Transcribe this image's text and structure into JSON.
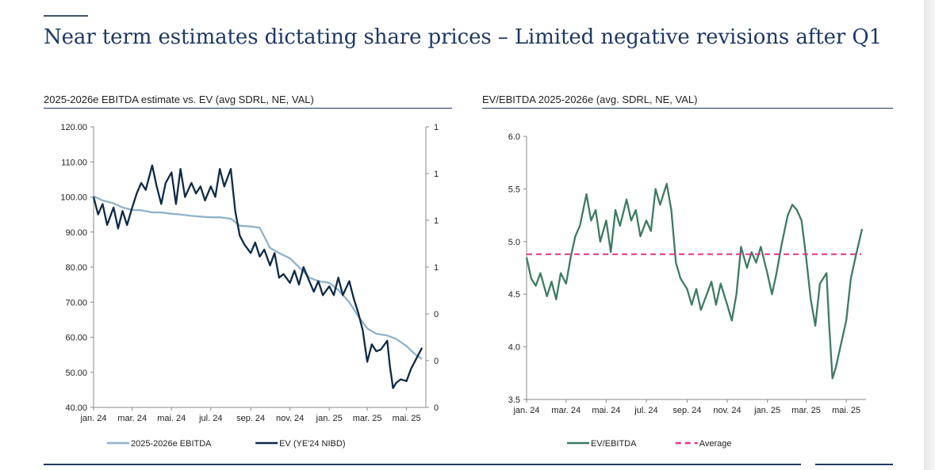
{
  "slide": {
    "title": "Near term estimates dictating share prices – Limited negative revisions after Q1"
  },
  "chart_data": [
    {
      "type": "line",
      "title": "2025-2026e EBITDA estimate vs. EV (avg SDRL, NE, VAL)",
      "x_tick_labels": [
        "jan. 24",
        "mar. 24",
        "mai. 24",
        "jul. 24",
        "sep. 24",
        "nov. 24",
        "jan. 25",
        "mar. 25",
        "mai. 25"
      ],
      "y_tick_labels": [
        "40.00",
        "50.00",
        "60.00",
        "70.00",
        "80.00",
        "90.00",
        "100.00",
        "110.00",
        "120.00"
      ],
      "y2_tick_labels": [
        "0",
        "0",
        "0",
        "1",
        "1",
        "1",
        "1"
      ],
      "ylim": [
        40,
        120
      ],
      "grid": false,
      "legend_position": "bottom",
      "series": [
        {
          "name": "2025-2026e EBITDA",
          "color": "#8fb2c9",
          "axis": "left",
          "points": [
            [
              "2024-01-01",
              100.2
            ],
            [
              "2024-01-15",
              99.0
            ],
            [
              "2024-02-01",
              98.2
            ],
            [
              "2024-02-15",
              97.0
            ],
            [
              "2024-03-01",
              96.3
            ],
            [
              "2024-03-15",
              96.2
            ],
            [
              "2024-04-01",
              95.6
            ],
            [
              "2024-04-15",
              95.6
            ],
            [
              "2024-05-01",
              95.2
            ],
            [
              "2024-05-15",
              95.0
            ],
            [
              "2024-06-01",
              94.6
            ],
            [
              "2024-06-15",
              94.4
            ],
            [
              "2024-07-01",
              94.2
            ],
            [
              "2024-07-15",
              94.2
            ],
            [
              "2024-08-01",
              93.8
            ],
            [
              "2024-08-15",
              91.8
            ],
            [
              "2024-09-01",
              91.6
            ],
            [
              "2024-09-15",
              91.2
            ],
            [
              "2024-10-01",
              85.5
            ],
            [
              "2024-10-15",
              84.0
            ],
            [
              "2024-11-01",
              82.5
            ],
            [
              "2024-11-15",
              80.0
            ],
            [
              "2024-12-01",
              77.0
            ],
            [
              "2024-12-15",
              76.0
            ],
            [
              "2025-01-01",
              75.5
            ],
            [
              "2025-01-15",
              73.5
            ],
            [
              "2025-02-01",
              70.0
            ],
            [
              "2025-02-15",
              66.0
            ],
            [
              "2025-03-01",
              62.5
            ],
            [
              "2025-03-15",
              61.0
            ],
            [
              "2025-04-01",
              60.5
            ],
            [
              "2025-04-15",
              59.5
            ],
            [
              "2025-05-01",
              57.5
            ],
            [
              "2025-05-15",
              55.0
            ],
            [
              "2025-05-25",
              53.8
            ]
          ]
        },
        {
          "name": "EV (YE'24 NIBD)",
          "color": "#0f2a45",
          "axis": "left",
          "points": [
            [
              "2024-01-01",
              100.0
            ],
            [
              "2024-01-08",
              95.0
            ],
            [
              "2024-01-15",
              98.0
            ],
            [
              "2024-01-22",
              92.0
            ],
            [
              "2024-02-01",
              97.0
            ],
            [
              "2024-02-08",
              91.0
            ],
            [
              "2024-02-15",
              96.0
            ],
            [
              "2024-02-22",
              92.0
            ],
            [
              "2024-03-01",
              97.0
            ],
            [
              "2024-03-08",
              101.0
            ],
            [
              "2024-03-15",
              104.0
            ],
            [
              "2024-03-22",
              102.0
            ],
            [
              "2024-04-01",
              109.0
            ],
            [
              "2024-04-08",
              103.0
            ],
            [
              "2024-04-15",
              98.0
            ],
            [
              "2024-04-22",
              104.0
            ],
            [
              "2024-05-01",
              107.0
            ],
            [
              "2024-05-08",
              98.0
            ],
            [
              "2024-05-15",
              108.0
            ],
            [
              "2024-05-22",
              100.0
            ],
            [
              "2024-06-01",
              104.0
            ],
            [
              "2024-06-08",
              101.0
            ],
            [
              "2024-06-15",
              103.0
            ],
            [
              "2024-06-22",
              99.0
            ],
            [
              "2024-07-01",
              103.0
            ],
            [
              "2024-07-08",
              100.0
            ],
            [
              "2024-07-15",
              108.0
            ],
            [
              "2024-07-22",
              103.0
            ],
            [
              "2024-08-01",
              108.0
            ],
            [
              "2024-08-08",
              96.0
            ],
            [
              "2024-08-15",
              89.0
            ],
            [
              "2024-08-22",
              86.5
            ],
            [
              "2024-09-01",
              84.0
            ],
            [
              "2024-09-08",
              87.0
            ],
            [
              "2024-09-15",
              83.0
            ],
            [
              "2024-09-22",
              85.0
            ],
            [
              "2024-10-01",
              80.5
            ],
            [
              "2024-10-08",
              84.0
            ],
            [
              "2024-10-15",
              77.0
            ],
            [
              "2024-10-22",
              78.0
            ],
            [
              "2024-11-01",
              75.5
            ],
            [
              "2024-11-08",
              79.0
            ],
            [
              "2024-11-15",
              75.0
            ],
            [
              "2024-11-22",
              80.0
            ],
            [
              "2024-12-01",
              76.0
            ],
            [
              "2024-12-08",
              73.0
            ],
            [
              "2024-12-15",
              76.0
            ],
            [
              "2024-12-22",
              72.0
            ],
            [
              "2025-01-01",
              74.5
            ],
            [
              "2025-01-08",
              72.0
            ],
            [
              "2025-01-15",
              77.0
            ],
            [
              "2025-01-22",
              72.0
            ],
            [
              "2025-02-01",
              76.0
            ],
            [
              "2025-02-08",
              71.0
            ],
            [
              "2025-02-15",
              67.0
            ],
            [
              "2025-02-22",
              62.0
            ],
            [
              "2025-03-01",
              53.0
            ],
            [
              "2025-03-08",
              58.0
            ],
            [
              "2025-03-15",
              56.0
            ],
            [
              "2025-03-22",
              56.5
            ],
            [
              "2025-04-01",
              59.0
            ],
            [
              "2025-04-05",
              52.0
            ],
            [
              "2025-04-10",
              45.5
            ],
            [
              "2025-04-15",
              47.0
            ],
            [
              "2025-04-22",
              48.0
            ],
            [
              "2025-05-01",
              47.5
            ],
            [
              "2025-05-08",
              51.0
            ],
            [
              "2025-05-15",
              53.5
            ],
            [
              "2025-05-25",
              57.0
            ]
          ]
        }
      ]
    },
    {
      "type": "line",
      "title": "EV/EBITDA 2025-2026e (avg. SDRL, NE, VAL)",
      "x_tick_labels": [
        "jan. 24",
        "mar. 24",
        "mai. 24",
        "jul. 24",
        "sep. 24",
        "nov. 24",
        "jan. 25",
        "mar. 25",
        "mai. 25"
      ],
      "y_tick_labels": [
        "3.5",
        "4.0",
        "4.5",
        "5.0",
        "5.5",
        "6.0"
      ],
      "ylim": [
        3.5,
        6.0
      ],
      "grid": false,
      "legend_position": "bottom",
      "series": [
        {
          "name": "EV/EBITDA",
          "color": "#3e7b62",
          "points": [
            [
              "2024-01-01",
              4.85
            ],
            [
              "2024-01-08",
              4.65
            ],
            [
              "2024-01-15",
              4.58
            ],
            [
              "2024-01-22",
              4.7
            ],
            [
              "2024-02-01",
              4.48
            ],
            [
              "2024-02-08",
              4.62
            ],
            [
              "2024-02-15",
              4.45
            ],
            [
              "2024-02-22",
              4.7
            ],
            [
              "2024-03-01",
              4.6
            ],
            [
              "2024-03-08",
              4.85
            ],
            [
              "2024-03-15",
              5.05
            ],
            [
              "2024-03-22",
              5.15
            ],
            [
              "2024-04-01",
              5.45
            ],
            [
              "2024-04-08",
              5.2
            ],
            [
              "2024-04-15",
              5.3
            ],
            [
              "2024-04-22",
              5.0
            ],
            [
              "2024-05-01",
              5.2
            ],
            [
              "2024-05-08",
              4.9
            ],
            [
              "2024-05-15",
              5.3
            ],
            [
              "2024-05-22",
              5.15
            ],
            [
              "2024-06-01",
              5.4
            ],
            [
              "2024-06-08",
              5.2
            ],
            [
              "2024-06-15",
              5.3
            ],
            [
              "2024-06-22",
              5.05
            ],
            [
              "2024-07-01",
              5.2
            ],
            [
              "2024-07-08",
              5.1
            ],
            [
              "2024-07-15",
              5.5
            ],
            [
              "2024-07-22",
              5.35
            ],
            [
              "2024-08-01",
              5.55
            ],
            [
              "2024-08-08",
              5.3
            ],
            [
              "2024-08-15",
              4.8
            ],
            [
              "2024-08-22",
              4.65
            ],
            [
              "2024-09-01",
              4.55
            ],
            [
              "2024-09-08",
              4.4
            ],
            [
              "2024-09-15",
              4.55
            ],
            [
              "2024-09-22",
              4.35
            ],
            [
              "2024-10-01",
              4.5
            ],
            [
              "2024-10-08",
              4.62
            ],
            [
              "2024-10-15",
              4.4
            ],
            [
              "2024-10-22",
              4.6
            ],
            [
              "2024-11-01",
              4.4
            ],
            [
              "2024-11-08",
              4.25
            ],
            [
              "2024-11-15",
              4.5
            ],
            [
              "2024-11-22",
              4.95
            ],
            [
              "2024-12-01",
              4.75
            ],
            [
              "2024-12-08",
              4.9
            ],
            [
              "2024-12-15",
              4.8
            ],
            [
              "2024-12-22",
              4.95
            ],
            [
              "2025-01-01",
              4.7
            ],
            [
              "2025-01-08",
              4.5
            ],
            [
              "2025-01-15",
              4.7
            ],
            [
              "2025-01-22",
              4.95
            ],
            [
              "2025-02-01",
              5.25
            ],
            [
              "2025-02-08",
              5.35
            ],
            [
              "2025-02-15",
              5.3
            ],
            [
              "2025-02-22",
              5.2
            ],
            [
              "2025-03-01",
              4.85
            ],
            [
              "2025-03-08",
              4.45
            ],
            [
              "2025-03-15",
              4.2
            ],
            [
              "2025-03-22",
              4.6
            ],
            [
              "2025-04-01",
              4.7
            ],
            [
              "2025-04-05",
              4.2
            ],
            [
              "2025-04-10",
              3.7
            ],
            [
              "2025-04-15",
              3.8
            ],
            [
              "2025-04-22",
              4.0
            ],
            [
              "2025-05-01",
              4.25
            ],
            [
              "2025-05-08",
              4.65
            ],
            [
              "2025-05-15",
              4.85
            ],
            [
              "2025-05-25",
              5.12
            ]
          ]
        },
        {
          "name": "Average",
          "color": "#e0348a",
          "style": "dashed",
          "value": 4.88
        }
      ]
    }
  ]
}
